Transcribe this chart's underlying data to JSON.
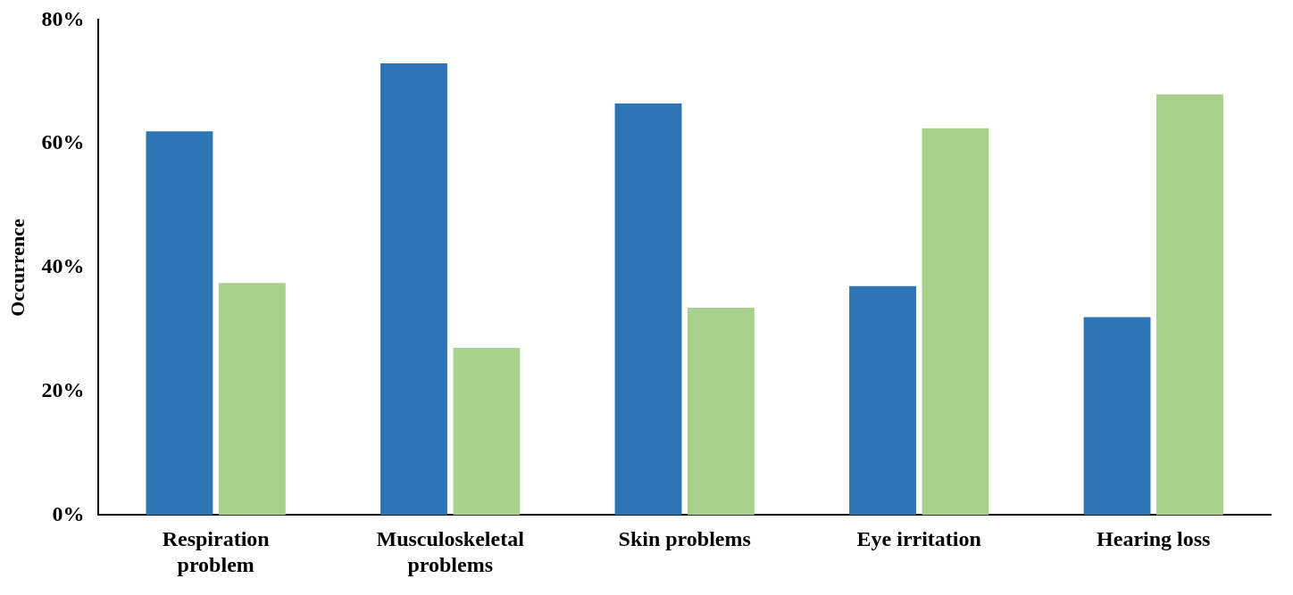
{
  "chart_data": {
    "type": "bar",
    "ylabel": "Occurrence",
    "categories": [
      "Respiration problem",
      "Musculoskeletal problems",
      "Skin problems",
      "Eye irritation",
      "Hearing loss"
    ],
    "series": [
      {
        "color": "#2e75b6",
        "values": [
          62,
          73,
          66.5,
          37,
          32
        ]
      },
      {
        "color": "#a9d18e",
        "values": [
          37.5,
          27,
          33.5,
          62.5,
          68
        ]
      }
    ],
    "ylim": [
      0,
      80
    ],
    "yticks": [
      {
        "value": 0,
        "label": "0%"
      },
      {
        "value": 20,
        "label": "20%"
      },
      {
        "value": 40,
        "label": "40%"
      },
      {
        "value": 60,
        "label": "60%"
      },
      {
        "value": 80,
        "label": "80%"
      }
    ],
    "grid": false,
    "legend": false
  }
}
